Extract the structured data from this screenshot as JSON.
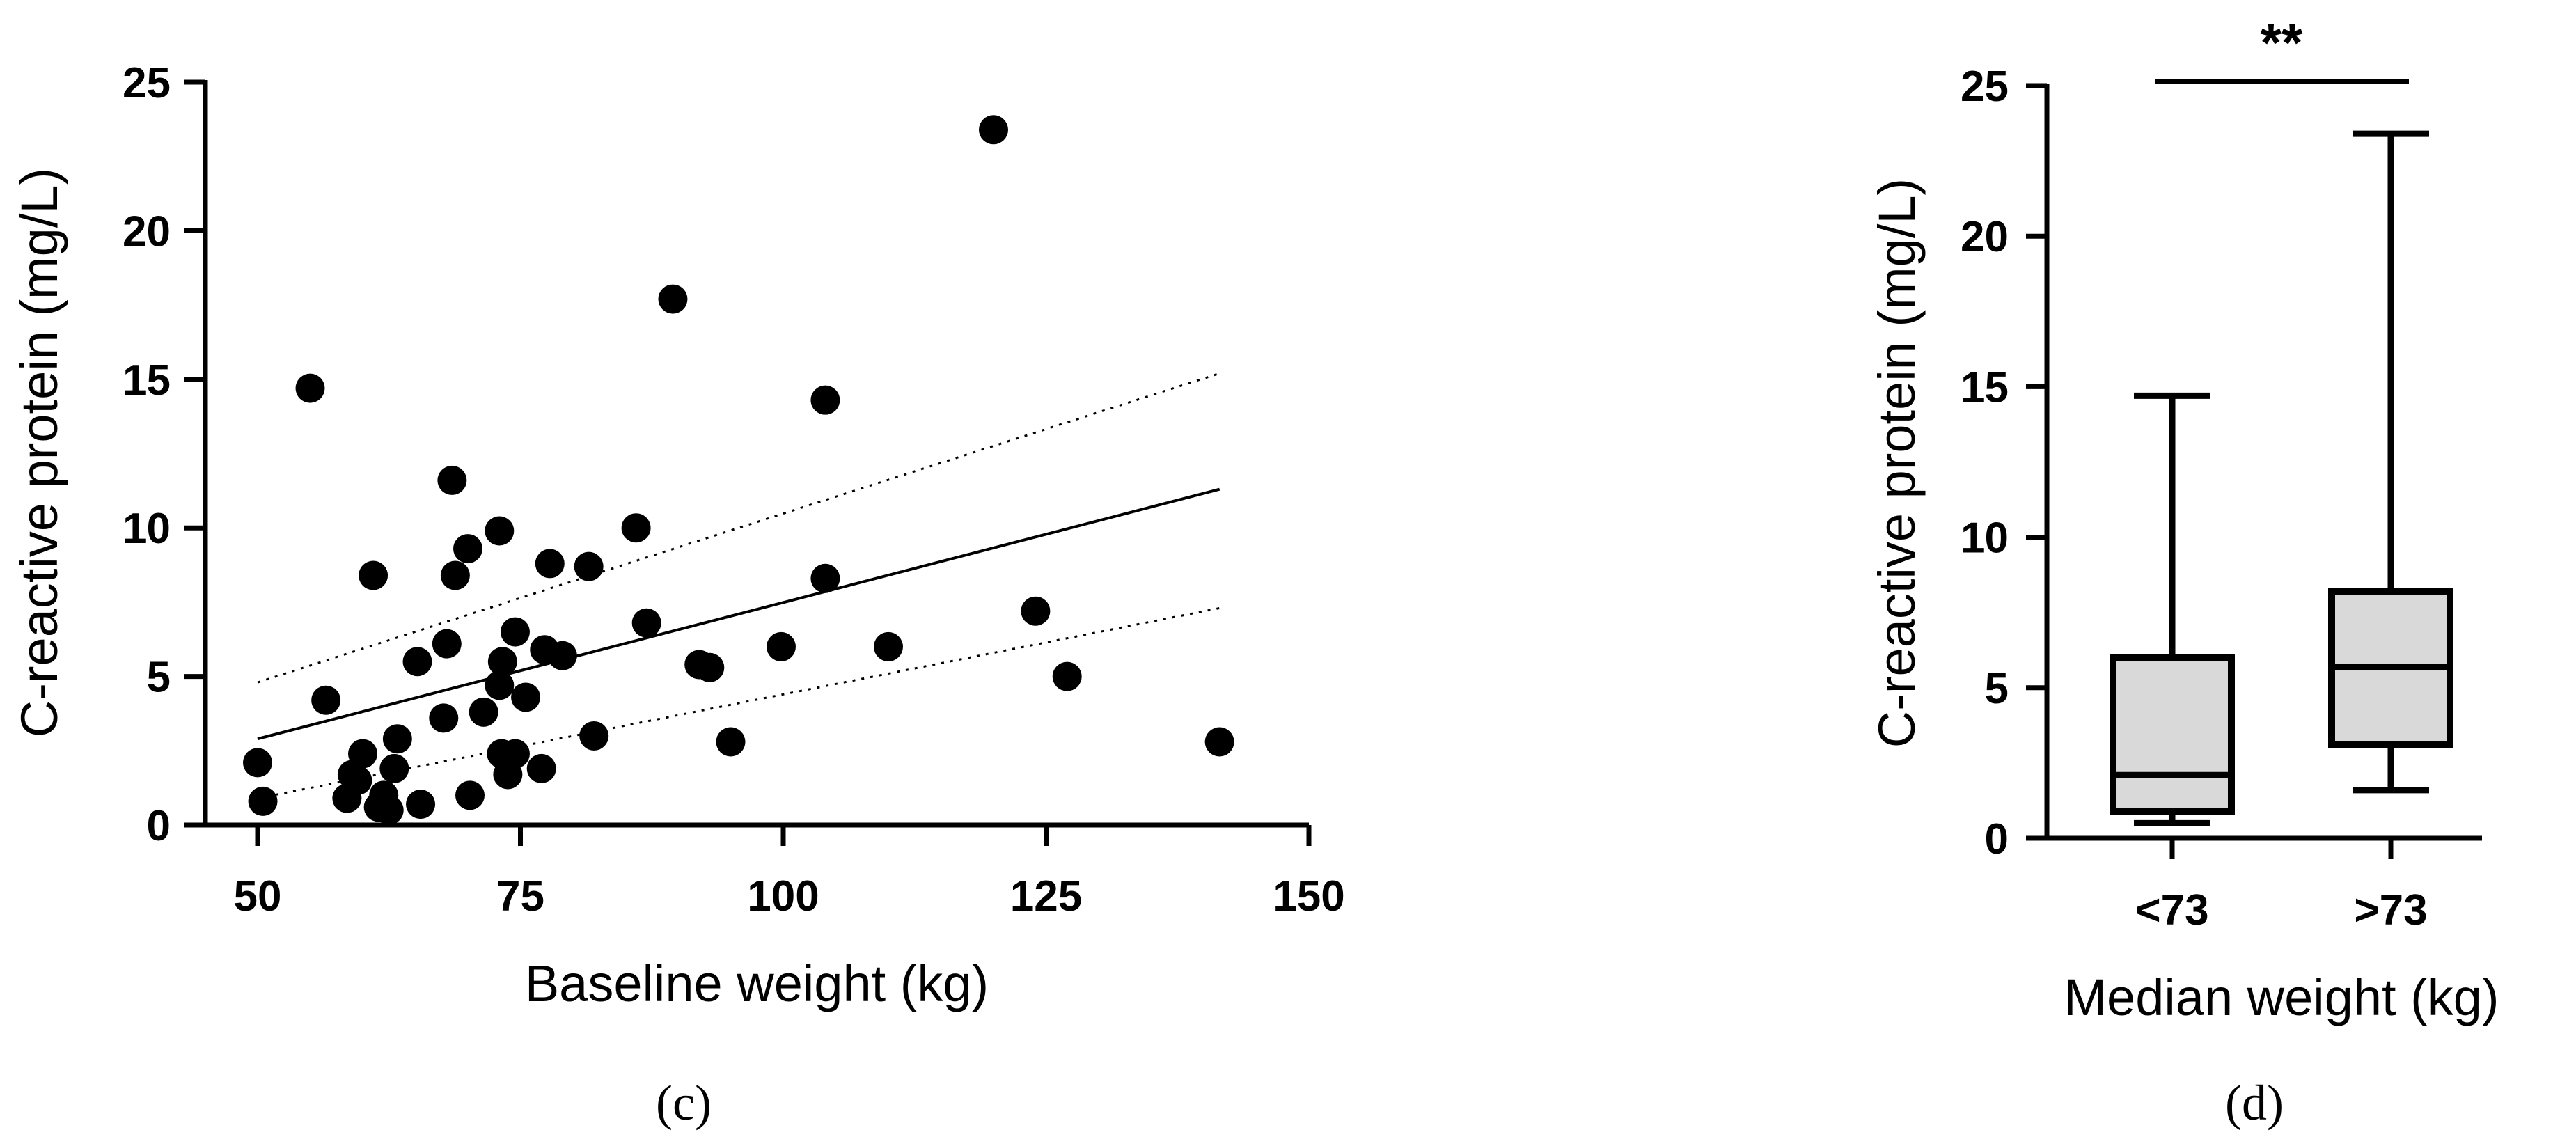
{
  "chart_data": [
    {
      "type": "scatter",
      "panel": "(c)",
      "xlabel": "Baseline weight (kg)",
      "ylabel": "C-reactive protein (mg/L)",
      "xlim": [
        50,
        150
      ],
      "ylim": [
        0,
        25
      ],
      "xticks": [
        50,
        75,
        100,
        125,
        150
      ],
      "yticks": [
        0,
        5,
        10,
        15,
        20,
        25
      ],
      "points": [
        [
          50,
          2.1
        ],
        [
          50.5,
          0.8
        ],
        [
          55,
          14.7
        ],
        [
          56.5,
          4.2
        ],
        [
          58.5,
          0.9
        ],
        [
          59,
          1.7
        ],
        [
          59.5,
          1.5
        ],
        [
          60,
          2.4
        ],
        [
          61,
          8.4
        ],
        [
          61.5,
          0.6
        ],
        [
          62,
          1.0
        ],
        [
          62.5,
          0.5
        ],
        [
          63,
          1.9
        ],
        [
          63.3,
          2.9
        ],
        [
          65.2,
          5.5
        ],
        [
          65.5,
          0.7
        ],
        [
          67.7,
          3.6
        ],
        [
          68,
          6.1
        ],
        [
          68.5,
          11.6
        ],
        [
          68.8,
          8.4
        ],
        [
          70,
          9.3
        ],
        [
          70.2,
          1.0
        ],
        [
          71.5,
          3.8
        ],
        [
          73,
          9.9
        ],
        [
          73,
          4.7
        ],
        [
          73.2,
          2.4
        ],
        [
          73.3,
          5.5
        ],
        [
          73.8,
          1.7
        ],
        [
          74.5,
          2.4
        ],
        [
          74.5,
          6.5
        ],
        [
          75.5,
          4.3
        ],
        [
          77,
          1.9
        ],
        [
          77.3,
          5.9
        ],
        [
          77.8,
          8.8
        ],
        [
          79,
          5.7
        ],
        [
          81.5,
          8.7
        ],
        [
          82,
          3.0
        ],
        [
          86,
          10.0
        ],
        [
          87,
          6.8
        ],
        [
          89.5,
          17.7
        ],
        [
          92,
          5.4
        ],
        [
          93,
          5.3
        ],
        [
          95,
          2.8
        ],
        [
          99.8,
          6.0
        ],
        [
          104,
          14.3
        ],
        [
          104,
          8.3
        ],
        [
          110,
          6.0
        ],
        [
          120,
          23.4
        ],
        [
          124,
          7.2
        ],
        [
          127,
          5.0
        ],
        [
          141.5,
          2.8
        ]
      ],
      "fit": {
        "x": [
          50,
          141.5
        ],
        "y": [
          2.9,
          11.3
        ]
      },
      "ci_lower": {
        "x": [
          50,
          141.5
        ],
        "y": [
          0.9,
          7.3
        ]
      },
      "ci_upper": {
        "x": [
          50,
          141.5
        ],
        "y": [
          4.8,
          15.2
        ]
      }
    },
    {
      "type": "box",
      "panel": "(d)",
      "xlabel": "Median weight (kg)",
      "ylabel": "C-reactive protein (mg/L)",
      "ylim": [
        0,
        25
      ],
      "yticks": [
        0,
        5,
        10,
        15,
        20,
        25
      ],
      "categories": [
        "<73",
        ">73"
      ],
      "boxes": [
        {
          "category": "<73",
          "min": 0.5,
          "q1": 0.9,
          "median": 2.1,
          "q3": 6.0,
          "max": 14.7
        },
        {
          "category": ">73",
          "min": 1.6,
          "q1": 3.1,
          "median": 5.7,
          "q3": 8.2,
          "max": 23.4
        }
      ],
      "significance": "**",
      "box_fill": "#d9d9d9"
    }
  ]
}
